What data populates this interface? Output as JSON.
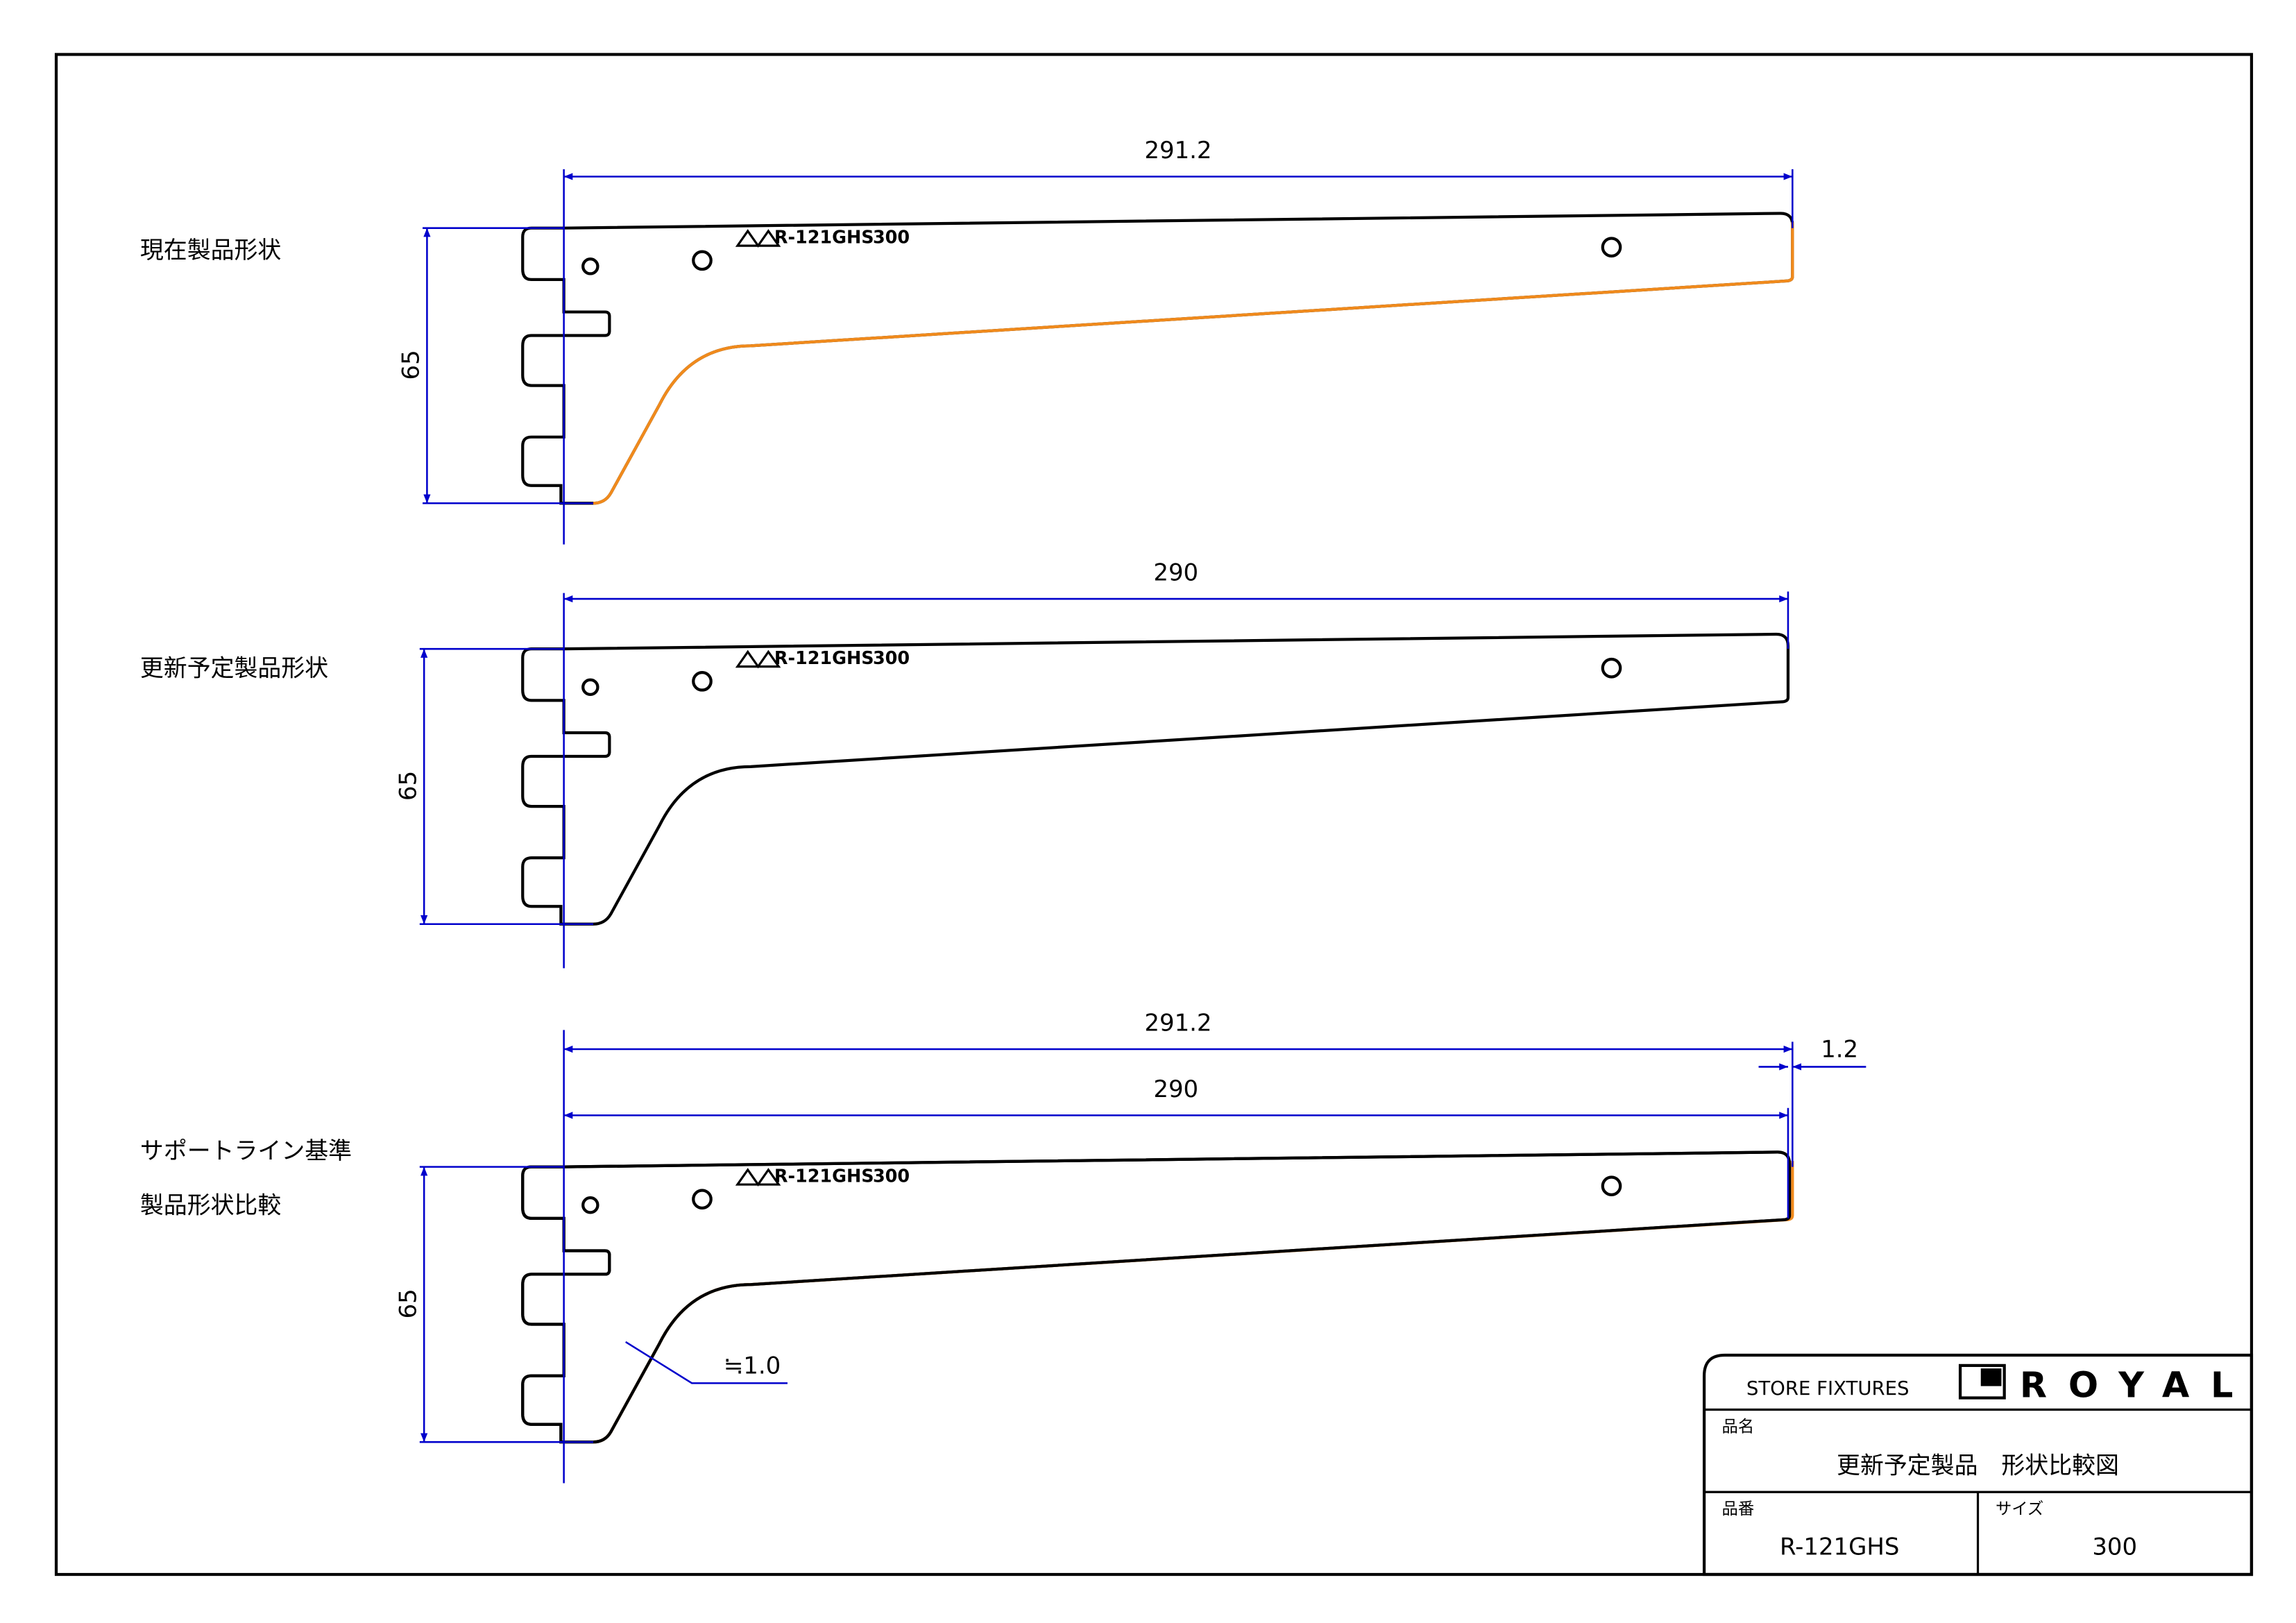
{
  "views": [
    {
      "label": [
        "現在製品形状"
      ],
      "width_dims": [
        "291.2"
      ],
      "height_dim": "65",
      "engraving": "R-121GHS",
      "engraving_size": "300"
    },
    {
      "label": [
        "更新予定製品形状"
      ],
      "width_dims": [
        "290"
      ],
      "height_dim": "65",
      "engraving": "R-121GHS",
      "engraving_size": "300"
    },
    {
      "label": [
        "サポートライン基準",
        "製品形状比較"
      ],
      "width_dims": [
        "291.2",
        "290"
      ],
      "height_dim": "65",
      "engraving": "R-121GHS",
      "engraving_size": "300",
      "offset_dim": "1.2",
      "thickness_note": "≒1.0"
    }
  ],
  "title_block": {
    "company": "STORE FIXTURES",
    "brand": "ROYAL",
    "name_label": "品名",
    "name": "更新予定製品　形状比較図",
    "part_label": "品番",
    "part": "R-121GHS",
    "size_label": "サイズ",
    "size": "300"
  }
}
